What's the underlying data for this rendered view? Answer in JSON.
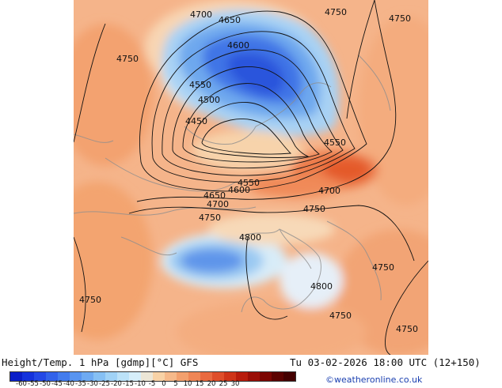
{
  "map": {
    "contour_labels": [
      "4700",
      "4650",
      "4750",
      "4750",
      "4750",
      "4600",
      "4550",
      "4500",
      "4450",
      "4550",
      "4600",
      "4650",
      "4700",
      "4750",
      "4700",
      "4750",
      "4550",
      "4800",
      "4800",
      "4750",
      "4750",
      "4750",
      "4750"
    ]
  },
  "footer": {
    "title": "Height/Temp. 1 hPa [gdmp][°C] GFS",
    "datetime": "Tu 03-02-2026 18:00 UTC (12+150)",
    "credit": "©weatheronline.co.uk"
  },
  "legend": {
    "ticks": [
      "-60",
      "-55",
      "-50",
      "-45",
      "-40",
      "-35",
      "-30",
      "-25",
      "-20",
      "-15",
      "-10",
      "-5",
      "0",
      "5",
      "10",
      "15",
      "20",
      "25",
      "30"
    ],
    "colors": [
      "#0a1ec8",
      "#1432dc",
      "#2348e6",
      "#3262ea",
      "#437cee",
      "#5894f0",
      "#6eaaf2",
      "#86c0f4",
      "#a0d2f6",
      "#bce2f8",
      "#d6eefa",
      "#ece6d6",
      "#f8d2a6",
      "#f6b98a",
      "#f3a06e",
      "#ef8656",
      "#e96a40",
      "#df4e2a",
      "#cf3418",
      "#b81c0c",
      "#9a0e06",
      "#7c0602",
      "#5c0200",
      "#440000"
    ]
  }
}
